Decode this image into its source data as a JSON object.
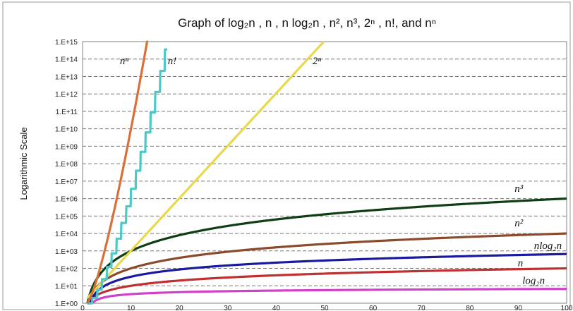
{
  "chart_data": {
    "type": "line",
    "title": "Graph of log₂n , n , n log₂n , n², n³, 2ⁿ , n!, and nⁿ",
    "xlabel": "",
    "ylabel": "Logarithmic Scale",
    "y_scale": "log10",
    "xlim": [
      0,
      100
    ],
    "ylim": [
      1,
      1000000000000000.0
    ],
    "grid": "horizontal dashed",
    "legend": "none (inline labels)",
    "x_ticks": [
      "0",
      "10",
      "20",
      "30",
      "40",
      "50",
      "60",
      "70",
      "80",
      "90",
      "100"
    ],
    "y_ticks": [
      "1.E+00",
      "1.E+01",
      "1.E+02",
      "1.E+03",
      "1.E+04",
      "1.E+05",
      "1.E+06",
      "1.E+07",
      "1.E+08",
      "1.E+09",
      "1.E+10",
      "1.E+11",
      "1.E+12",
      "1.E+13",
      "1.E+14",
      "1.E+15"
    ],
    "series": [
      {
        "name": "log₂n",
        "func": "log2n",
        "color": "#d040c8",
        "x": [
          1,
          100
        ],
        "y": [
          1,
          6.64
        ]
      },
      {
        "name": "n",
        "func": "n",
        "color": "#c03030",
        "x": [
          1,
          100
        ],
        "y": [
          1,
          100
        ]
      },
      {
        "name": "nlog₂n",
        "func": "nlog2n",
        "color": "#1a1aa0",
        "x": [
          1,
          100
        ],
        "y": [
          1,
          664
        ]
      },
      {
        "name": "n²",
        "func": "n2",
        "color": "#8b4a2b",
        "x": [
          1,
          100
        ],
        "y": [
          1,
          10000
        ]
      },
      {
        "name": "n³",
        "func": "n3",
        "color": "#0f3d14",
        "x": [
          1,
          100
        ],
        "y": [
          1,
          1000000
        ]
      },
      {
        "name": "2ⁿ",
        "func": "2n",
        "color": "#e8d84a",
        "x": [
          1,
          49.8
        ],
        "y": [
          2,
          1000000000000000.0
        ]
      },
      {
        "name": "n!",
        "func": "fact",
        "color": "#4cc8c8",
        "x": [
          1,
          17.5
        ],
        "y": [
          1,
          1000000000000000.0
        ]
      },
      {
        "name": "nⁿ",
        "func": "nn",
        "color": "#d87038",
        "x": [
          1,
          13.5
        ],
        "y": [
          1,
          1000000000000000.0
        ]
      }
    ]
  }
}
